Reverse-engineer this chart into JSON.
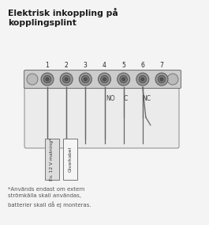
{
  "title_line1": "Elektrisk inkoppling på",
  "title_line2": "kopplingsplint",
  "bg_color": "#f5f5f5",
  "terminal_numbers": [
    "1",
    "2",
    "3",
    "4",
    "5",
    "6",
    "7"
  ],
  "labels_below": [
    "NO",
    "C",
    "NC"
  ],
  "cable_label1": "Ev. 12 V matning*",
  "cable_label2": "Givarkabel",
  "footnote": "*Används endast om extern\nströmkälla skall användas,\nbatterier skall då ej monteras."
}
